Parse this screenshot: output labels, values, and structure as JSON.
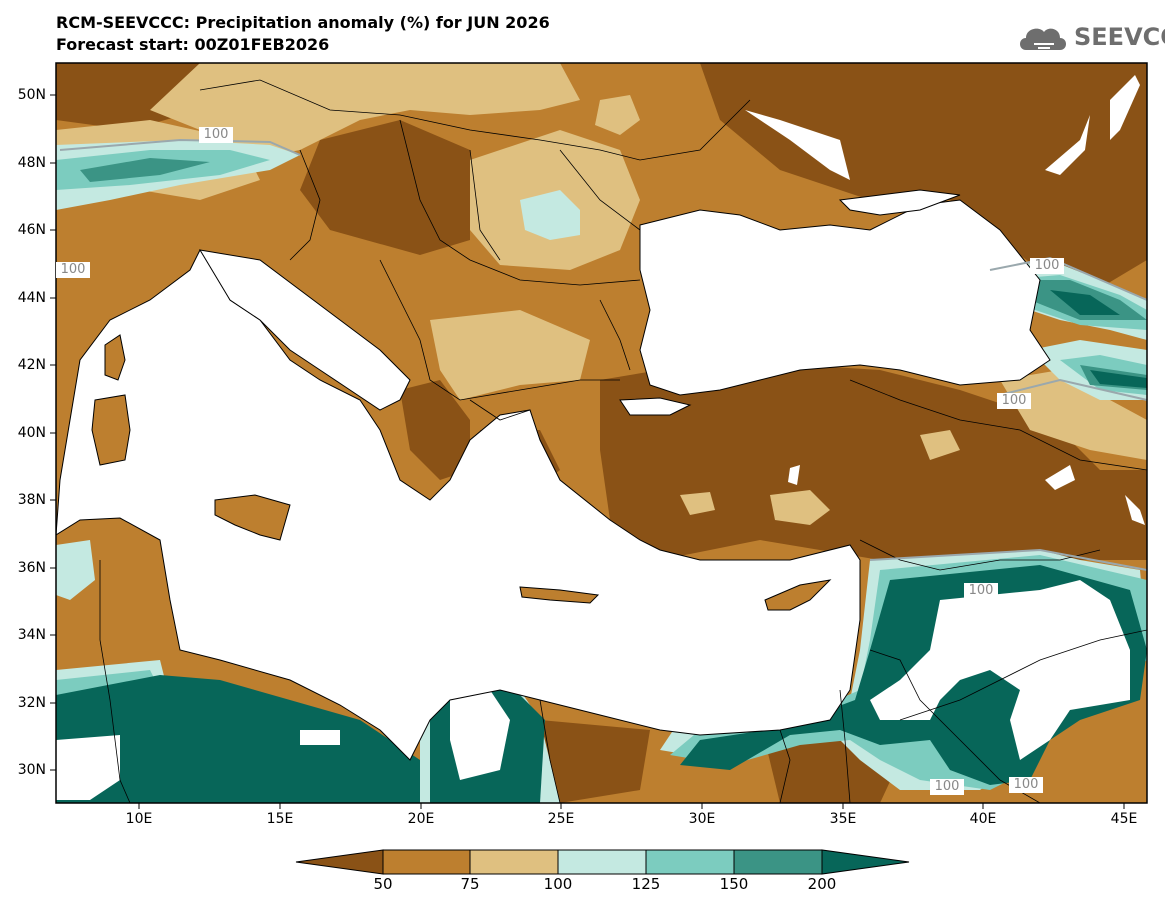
{
  "header": {
    "title_line1": "RCM-SEEVCCC: Precipitation anomaly (%) for JUN 2026",
    "title_line2": "Forecast start: 00Z01FEB2026"
  },
  "logo": {
    "text": "SEEVCCC"
  },
  "axes": {
    "lat_labels": [
      "50N",
      "48N",
      "46N",
      "44N",
      "42N",
      "40N",
      "38N",
      "36N",
      "34N",
      "32N",
      "30N"
    ],
    "lon_labels": [
      "10E",
      "15E",
      "20E",
      "25E",
      "30E",
      "35E",
      "40E",
      "45E"
    ]
  },
  "contour_labels": [
    "100",
    "100",
    "100",
    "100",
    "100",
    "100",
    "100"
  ],
  "colorbar": {
    "labels": [
      "50",
      "75",
      "100",
      "125",
      "150",
      "200"
    ],
    "colors": [
      "#8a5216",
      "#bd7f2f",
      "#dfc080",
      "#c4e9e1",
      "#7cccbf",
      "#3b9485",
      "#076659"
    ]
  },
  "colors": {
    "very_dry": "#8a5216",
    "dry": "#bd7f2f",
    "slightly_dry": "#dfc080",
    "slightly_wet": "#c4e9e1",
    "wet": "#7cccbf",
    "very_wet": "#3b9485",
    "extreme_wet": "#076659",
    "sea": "#ffffff"
  }
}
